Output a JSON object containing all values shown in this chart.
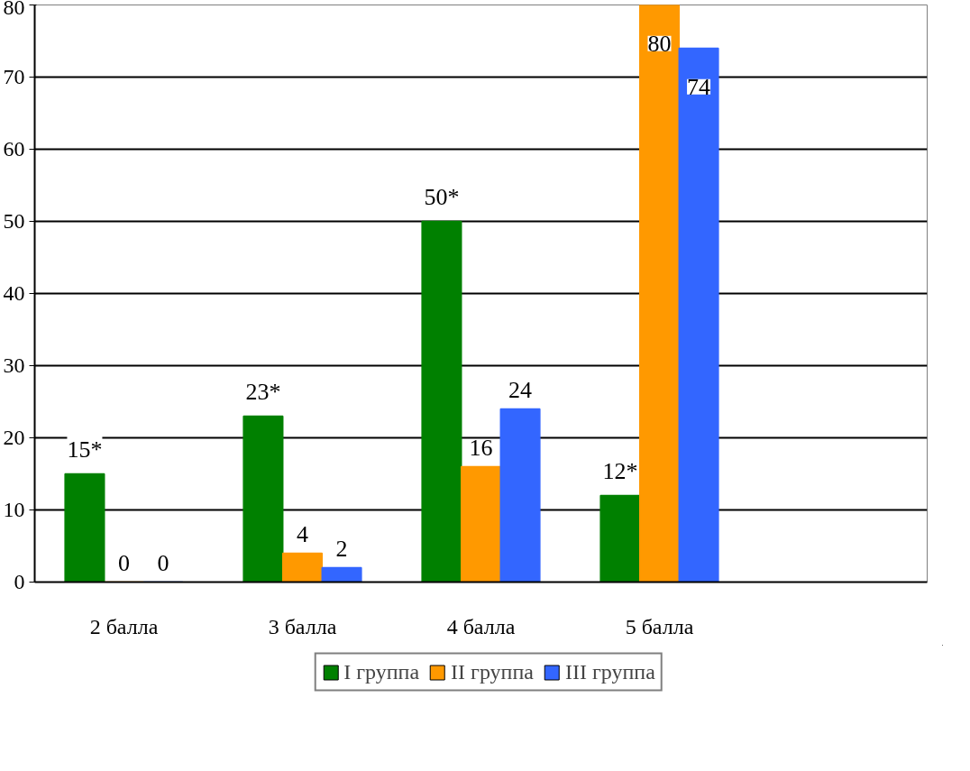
{
  "chart_data": {
    "type": "bar",
    "categories": [
      "2 балла",
      "3 балла",
      "4 балла",
      "5 балла",
      null
    ],
    "series": [
      {
        "name": "I группа",
        "color": "#008000",
        "values": [
          15,
          23,
          50,
          12,
          null
        ],
        "value_labels": [
          "15*",
          "23*",
          "50*",
          "12*",
          null
        ]
      },
      {
        "name": "II группа",
        "color": "#ff9900",
        "values": [
          0,
          4,
          16,
          80,
          null
        ],
        "value_labels": [
          "0",
          "4",
          "16",
          "80",
          null
        ]
      },
      {
        "name": "III группа",
        "color": "#3366ff",
        "values": [
          0,
          2,
          24,
          74,
          null
        ],
        "value_labels": [
          "0",
          "2",
          "24",
          "74",
          null
        ]
      }
    ],
    "ylim": [
      0,
      80
    ],
    "yticks": [
      0,
      10,
      20,
      30,
      40,
      50,
      60,
      70,
      80
    ],
    "grid": "y",
    "legend": "bottom"
  }
}
